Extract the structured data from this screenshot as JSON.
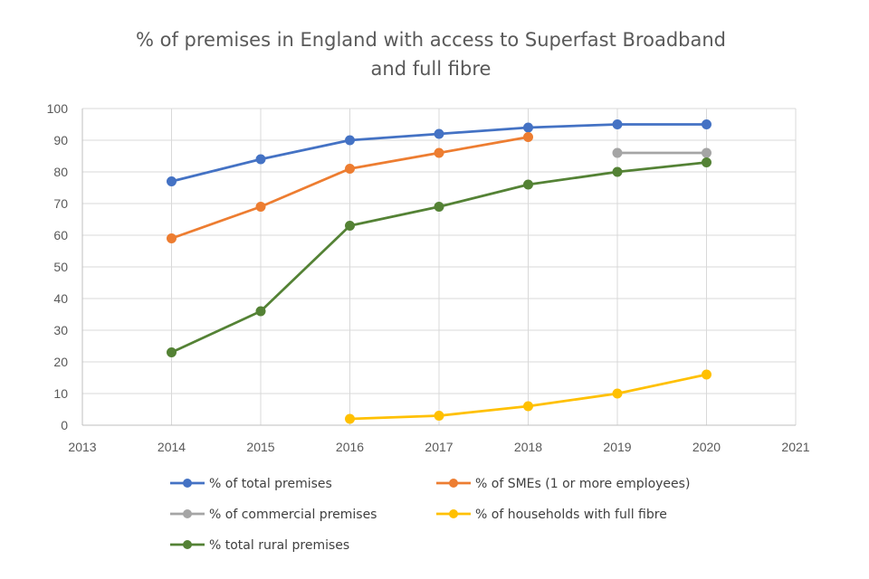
{
  "chart_data": {
    "type": "line",
    "title_lines": [
      "% of premises in England with access to Superfast Broadband",
      "and full fibre"
    ],
    "xlabel": "",
    "ylabel": "",
    "xlim": [
      2013,
      2021
    ],
    "ylim": [
      0,
      100
    ],
    "x_ticks": [
      2013,
      2014,
      2015,
      2016,
      2017,
      2018,
      2019,
      2020,
      2021
    ],
    "y_ticks": [
      0,
      10,
      20,
      30,
      40,
      50,
      60,
      70,
      80,
      90,
      100
    ],
    "grid": true,
    "legend_position": "bottom",
    "series": [
      {
        "name": "% of total premises",
        "color": "#4472C4",
        "points": [
          [
            2014,
            77
          ],
          [
            2015,
            84
          ],
          [
            2016,
            90
          ],
          [
            2017,
            92
          ],
          [
            2018,
            94
          ],
          [
            2019,
            95
          ],
          [
            2020,
            95
          ]
        ]
      },
      {
        "name": "% of SMEs (1 or more employees)",
        "color": "#ED7D31",
        "points": [
          [
            2014,
            59
          ],
          [
            2015,
            69
          ],
          [
            2016,
            81
          ],
          [
            2017,
            86
          ],
          [
            2018,
            91
          ]
        ]
      },
      {
        "name": "% of commercial premises",
        "color": "#A5A5A5",
        "points": [
          [
            2019,
            86
          ],
          [
            2020,
            86
          ]
        ]
      },
      {
        "name": "% of households with full fibre",
        "color": "#FFC000",
        "points": [
          [
            2016,
            2
          ],
          [
            2017,
            3
          ],
          [
            2018,
            6
          ],
          [
            2019,
            10
          ],
          [
            2020,
            16
          ]
        ]
      },
      {
        "name": "% total rural premises",
        "color": "#548235",
        "points": [
          [
            2014,
            23
          ],
          [
            2015,
            36
          ],
          [
            2016,
            63
          ],
          [
            2017,
            69
          ],
          [
            2018,
            76
          ],
          [
            2019,
            80
          ],
          [
            2020,
            83
          ]
        ]
      }
    ]
  }
}
